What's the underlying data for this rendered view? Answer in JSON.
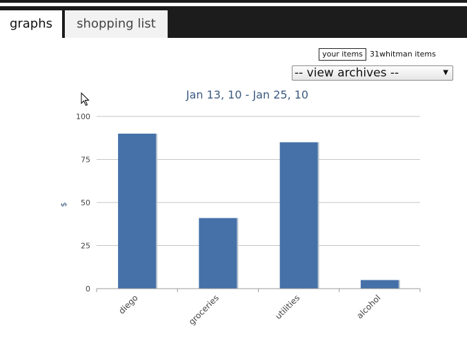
{
  "tabs": [
    {
      "label": "graphs",
      "active": true
    },
    {
      "label": "shopping list",
      "active": false
    }
  ],
  "view_toggle": {
    "your_items": "your items",
    "other_items": "31whitman items"
  },
  "archives_select": {
    "selected": "-- view archives --"
  },
  "colors": {
    "bar": "#4571a8",
    "title": "#3a5a80",
    "grid": "#c4c4c4",
    "tabbar": "#1c1c1c"
  },
  "chart_data": {
    "type": "bar",
    "title": "Jan 13, 10 - Jan 25, 10",
    "xlabel": "",
    "ylabel": "$",
    "categories": [
      "diego",
      "groceries",
      "utilities",
      "alcohol"
    ],
    "values": [
      90,
      41,
      85,
      5
    ],
    "ylim": [
      0,
      100
    ],
    "yticks": [
      0,
      25,
      50,
      75,
      100
    ],
    "grid": true
  }
}
